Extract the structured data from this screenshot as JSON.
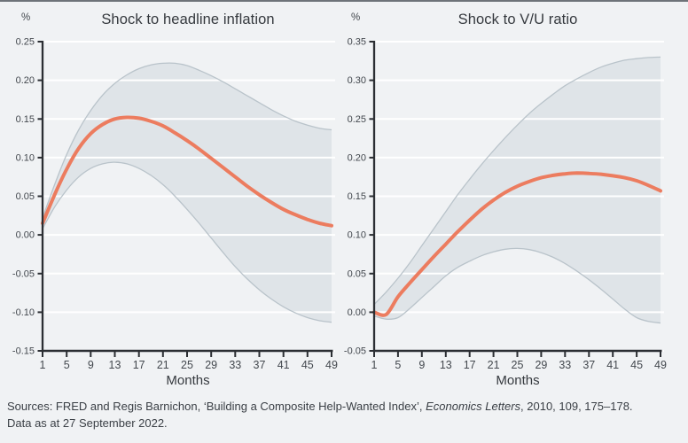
{
  "theme": {
    "background": "#f0f2f4",
    "accent_line": "#ec7c5f",
    "band_fill": "#dfe4e8",
    "band_edge": "#b9c3ca",
    "grid": "#ffffff",
    "axis": "#2b2e33",
    "tick_text": "#43484e",
    "text": "#35393e"
  },
  "footer": {
    "line1_prefix": "Sources: FRED and Regis Barnichon, ‘Building a Composite Help-Wanted Index’, ",
    "line1_italic": "Economics Letters",
    "line1_suffix": ", 2010, 109, 175–178.",
    "line2": "Data as at 27 September 2022."
  },
  "chart_data": [
    {
      "type": "line",
      "title": "Shock to headline inflation",
      "unit_label": "%",
      "xlabel": "Months",
      "xlim": [
        1,
        49
      ],
      "ylim": [
        -0.15,
        0.25
      ],
      "x_ticks": [
        1,
        5,
        9,
        13,
        17,
        21,
        25,
        29,
        33,
        37,
        41,
        45,
        49
      ],
      "y_ticks": [
        -0.15,
        -0.1,
        -0.05,
        0.0,
        0.05,
        0.1,
        0.15,
        0.2,
        0.25
      ],
      "grid": true,
      "legend": "none",
      "x": [
        1,
        3,
        5,
        7,
        9,
        11,
        13,
        15,
        17,
        19,
        21,
        23,
        25,
        27,
        29,
        31,
        33,
        35,
        37,
        39,
        41,
        43,
        45,
        47,
        49
      ],
      "series": [
        {
          "name": "impulse-response",
          "role": "center",
          "values": [
            0.015,
            0.052,
            0.085,
            0.112,
            0.131,
            0.143,
            0.15,
            0.152,
            0.151,
            0.147,
            0.141,
            0.132,
            0.122,
            0.111,
            0.099,
            0.087,
            0.075,
            0.063,
            0.052,
            0.042,
            0.033,
            0.026,
            0.02,
            0.015,
            0.012
          ]
        },
        {
          "name": "confidence-band-upper",
          "role": "band_upper",
          "values": [
            0.022,
            0.065,
            0.104,
            0.136,
            0.161,
            0.181,
            0.196,
            0.207,
            0.215,
            0.22,
            0.222,
            0.222,
            0.219,
            0.213,
            0.206,
            0.198,
            0.189,
            0.18,
            0.171,
            0.162,
            0.154,
            0.147,
            0.142,
            0.138,
            0.136
          ]
        },
        {
          "name": "confidence-band-lower",
          "role": "band_lower",
          "values": [
            0.008,
            0.036,
            0.058,
            0.075,
            0.086,
            0.092,
            0.094,
            0.092,
            0.086,
            0.077,
            0.065,
            0.05,
            0.033,
            0.015,
            -0.004,
            -0.023,
            -0.041,
            -0.057,
            -0.071,
            -0.083,
            -0.093,
            -0.101,
            -0.107,
            -0.111,
            -0.113
          ]
        }
      ]
    },
    {
      "type": "line",
      "title": "Shock to V/U ratio",
      "unit_label": "%",
      "xlabel": "Months",
      "xlim": [
        1,
        49
      ],
      "ylim": [
        -0.05,
        0.35
      ],
      "x_ticks": [
        1,
        5,
        9,
        13,
        17,
        21,
        25,
        29,
        33,
        37,
        41,
        45,
        49
      ],
      "y_ticks": [
        -0.05,
        0.0,
        0.05,
        0.1,
        0.15,
        0.2,
        0.25,
        0.3,
        0.35
      ],
      "grid": true,
      "legend": "none",
      "x": [
        1,
        3,
        5,
        7,
        9,
        11,
        13,
        15,
        17,
        19,
        21,
        23,
        25,
        27,
        29,
        31,
        33,
        35,
        37,
        39,
        41,
        43,
        45,
        47,
        49
      ],
      "series": [
        {
          "name": "impulse-response",
          "role": "center",
          "values": [
            0.0,
            -0.003,
            0.02,
            0.038,
            0.055,
            0.072,
            0.088,
            0.104,
            0.119,
            0.133,
            0.145,
            0.155,
            0.163,
            0.169,
            0.174,
            0.177,
            0.179,
            0.18,
            0.1795,
            0.1785,
            0.1765,
            0.174,
            0.17,
            0.164,
            0.157
          ]
        },
        {
          "name": "confidence-band-upper",
          "role": "band_upper",
          "values": [
            0.01,
            0.026,
            0.044,
            0.064,
            0.086,
            0.108,
            0.13,
            0.152,
            0.172,
            0.191,
            0.209,
            0.226,
            0.242,
            0.257,
            0.27,
            0.282,
            0.293,
            0.302,
            0.31,
            0.317,
            0.322,
            0.326,
            0.328,
            0.3295,
            0.33
          ]
        },
        {
          "name": "confidence-band-lower",
          "role": "band_lower",
          "values": [
            -0.005,
            -0.009,
            -0.007,
            0.005,
            0.019,
            0.033,
            0.047,
            0.058,
            0.066,
            0.073,
            0.078,
            0.0815,
            0.0825,
            0.081,
            0.077,
            0.071,
            0.063,
            0.053,
            0.042,
            0.03,
            0.017,
            0.004,
            -0.007,
            -0.012,
            -0.014
          ]
        }
      ]
    }
  ]
}
